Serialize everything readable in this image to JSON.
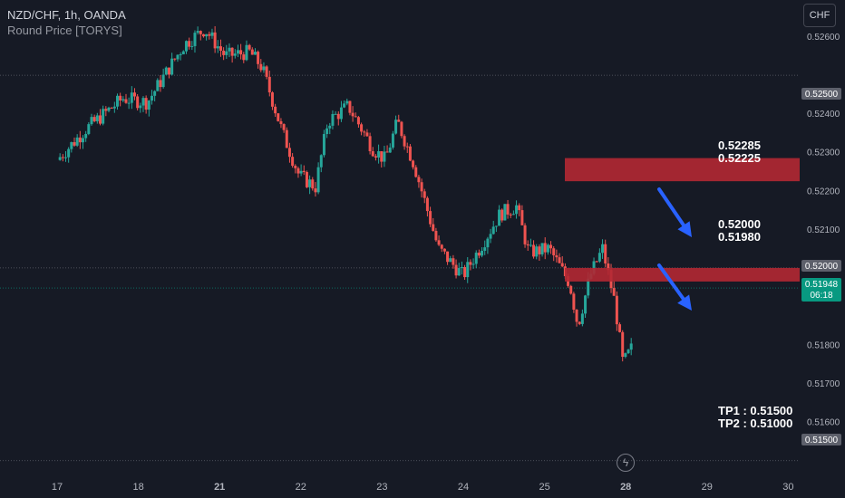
{
  "header": {
    "symbol_line": "NZD/CHF, 1h, OANDA",
    "indicator_line": "Round Price [TORYS]"
  },
  "currency_button": "CHF",
  "icons": {
    "lightning": "lightning-icon"
  },
  "colors": {
    "background": "#161a25",
    "up_candle": "#26a69a",
    "down_candle": "#ef5350",
    "zone_fill": "#b22833",
    "arrow": "#2962ff",
    "price_badge": "#089981",
    "level_badge": "#5d606b"
  },
  "chart_data": {
    "type": "candlestick",
    "symbol": "NZD/CHF",
    "timeframe": "1h",
    "ylim": [
      0.5145,
      0.5266
    ],
    "y_ticks": [
      "0.52600",
      "0.52400",
      "0.52300",
      "0.52200",
      "0.52100",
      "0.51800",
      "0.51700",
      "0.51600"
    ],
    "x_ticks": [
      "17",
      "18",
      "21",
      "22",
      "23",
      "24",
      "25",
      "28",
      "29",
      "30"
    ],
    "x_tick_index": [
      0,
      1,
      2,
      3,
      4,
      5,
      6,
      7,
      8,
      9
    ],
    "levels": [
      {
        "value": 0.525,
        "label": "0.52500"
      },
      {
        "value": 0.52,
        "label": "0.52000"
      },
      {
        "value": 0.515,
        "label": "0.51500"
      }
    ],
    "last_price": {
      "value": 0.51948,
      "label": "0.51948",
      "countdown": "06:18"
    },
    "zones": [
      {
        "high": 0.52285,
        "low": 0.52225,
        "label_high": "0.52285",
        "label_low": "0.52225"
      },
      {
        "high": 0.52,
        "low": 0.5198,
        "label_high": "0.52000",
        "label_low": "0.51980"
      }
    ],
    "take_profit": [
      "TP1 : 0.51500",
      "TP2 : 0.51000"
    ],
    "trend_points": [
      {
        "x": 0.0,
        "y": 0.5228
      },
      {
        "x": 0.35,
        "y": 0.5236
      },
      {
        "x": 0.8,
        "y": 0.5244
      },
      {
        "x": 1.1,
        "y": 0.5243
      },
      {
        "x": 1.55,
        "y": 0.5258
      },
      {
        "x": 1.8,
        "y": 0.5262
      },
      {
        "x": 2.05,
        "y": 0.5255
      },
      {
        "x": 2.35,
        "y": 0.5256
      },
      {
        "x": 2.5,
        "y": 0.5252
      },
      {
        "x": 2.75,
        "y": 0.5235
      },
      {
        "x": 2.95,
        "y": 0.5224
      },
      {
        "x": 3.15,
        "y": 0.5221
      },
      {
        "x": 3.3,
        "y": 0.5238
      },
      {
        "x": 3.55,
        "y": 0.5242
      },
      {
        "x": 3.85,
        "y": 0.5231
      },
      {
        "x": 4.0,
        "y": 0.5228
      },
      {
        "x": 4.15,
        "y": 0.5238
      },
      {
        "x": 4.35,
        "y": 0.5227
      },
      {
        "x": 4.65,
        "y": 0.5205
      },
      {
        "x": 4.95,
        "y": 0.5198
      },
      {
        "x": 5.15,
        "y": 0.5205
      },
      {
        "x": 5.4,
        "y": 0.5214
      },
      {
        "x": 5.6,
        "y": 0.5216
      },
      {
        "x": 5.75,
        "y": 0.5204
      },
      {
        "x": 6.0,
        "y": 0.5205
      },
      {
        "x": 6.25,
        "y": 0.5196
      },
      {
        "x": 6.35,
        "y": 0.5185
      },
      {
        "x": 6.5,
        "y": 0.5198
      },
      {
        "x": 6.65,
        "y": 0.5205
      },
      {
        "x": 6.8,
        "y": 0.5191
      },
      {
        "x": 6.9,
        "y": 0.5175
      },
      {
        "x": 7.0,
        "y": 0.5179
      }
    ]
  }
}
